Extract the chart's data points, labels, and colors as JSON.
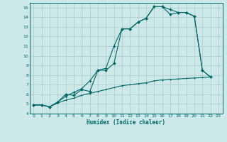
{
  "xlabel": "Humidex (Indice chaleur)",
  "bg_color": "#cce8e8",
  "grid_color": "#aacccc",
  "line_color": "#006666",
  "xlim": [
    -0.5,
    23.5
  ],
  "ylim": [
    4,
    15.5
  ],
  "xticks": [
    0,
    1,
    2,
    3,
    4,
    5,
    6,
    7,
    8,
    9,
    10,
    11,
    12,
    13,
    14,
    15,
    16,
    17,
    18,
    19,
    20,
    21,
    22,
    23
  ],
  "yticks": [
    4,
    5,
    6,
    7,
    8,
    9,
    10,
    11,
    12,
    13,
    14,
    15
  ],
  "line1_x": [
    0,
    1,
    2,
    3,
    4,
    5,
    6,
    7,
    8,
    9,
    10,
    11,
    12,
    13,
    14,
    15,
    16,
    17,
    18,
    19,
    20,
    21,
    22
  ],
  "line1_y": [
    4.9,
    4.9,
    4.7,
    5.2,
    6.0,
    5.9,
    6.5,
    6.3,
    8.5,
    8.5,
    9.2,
    12.8,
    12.8,
    13.5,
    13.9,
    15.1,
    15.1,
    14.3,
    14.5,
    14.5,
    14.1,
    8.5,
    7.8
  ],
  "line2_x": [
    0,
    1,
    2,
    3,
    4,
    5,
    6,
    7,
    8,
    9,
    10,
    11,
    12,
    13,
    14,
    15,
    16,
    17,
    18,
    19,
    20,
    21,
    22
  ],
  "line2_y": [
    4.9,
    4.9,
    4.7,
    5.2,
    5.8,
    6.2,
    6.6,
    7.4,
    8.5,
    8.7,
    11.0,
    12.8,
    12.8,
    13.5,
    13.9,
    15.1,
    15.1,
    14.8,
    14.5,
    14.5,
    14.1,
    8.5,
    7.8
  ],
  "line3_x": [
    0,
    1,
    2,
    3,
    4,
    5,
    6,
    7,
    8,
    9,
    10,
    11,
    12,
    13,
    14,
    15,
    16,
    17,
    18,
    19,
    20,
    21,
    22
  ],
  "line3_y": [
    4.9,
    4.9,
    4.7,
    5.1,
    5.4,
    5.6,
    5.9,
    6.1,
    6.3,
    6.5,
    6.7,
    6.9,
    7.0,
    7.1,
    7.2,
    7.4,
    7.5,
    7.55,
    7.6,
    7.65,
    7.7,
    7.75,
    7.8
  ]
}
